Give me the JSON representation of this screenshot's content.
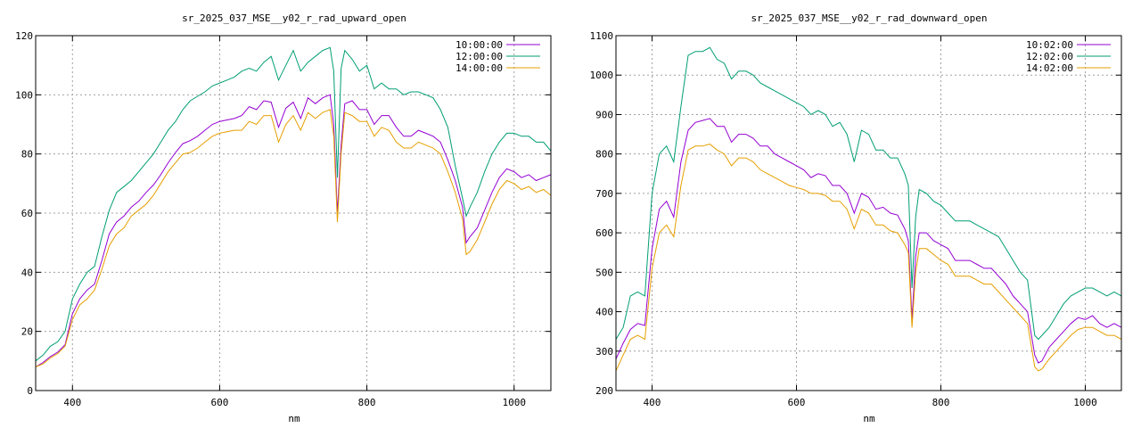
{
  "chart_data": [
    {
      "type": "line",
      "title": "sr_2025_037_MSE__y02_r_rad_upward_open",
      "xlabel": "nm",
      "ylabel": "",
      "xlim": [
        350,
        1050
      ],
      "ylim": [
        0,
        120
      ],
      "xticks": [
        400,
        600,
        800,
        1000
      ],
      "yticks": [
        0,
        20,
        40,
        60,
        80,
        100,
        120
      ],
      "grid": true,
      "legend_position": "top-right",
      "x": [
        350,
        360,
        370,
        380,
        390,
        400,
        410,
        420,
        430,
        440,
        450,
        460,
        470,
        480,
        490,
        500,
        510,
        520,
        530,
        540,
        550,
        560,
        570,
        580,
        590,
        600,
        610,
        620,
        630,
        640,
        650,
        660,
        670,
        680,
        690,
        700,
        710,
        720,
        730,
        740,
        750,
        755,
        760,
        765,
        770,
        780,
        790,
        800,
        810,
        820,
        830,
        840,
        850,
        860,
        870,
        880,
        890,
        900,
        910,
        920,
        930,
        935,
        940,
        950,
        960,
        970,
        980,
        990,
        1000,
        1010,
        1020,
        1030,
        1040,
        1050
      ],
      "series": [
        {
          "name": "10:00:00",
          "color": "#9400d3",
          "values": [
            8,
            9.5,
            11.5,
            13,
            15.5,
            26,
            31,
            34,
            36,
            44,
            53,
            57,
            59,
            62,
            64,
            67,
            69.5,
            73,
            77,
            80.5,
            83.5,
            84.5,
            86,
            88,
            90,
            91,
            91.5,
            92,
            93,
            96,
            95,
            98,
            97.5,
            89,
            95.5,
            97.5,
            92,
            99,
            97,
            99,
            100,
            90,
            60,
            83,
            97,
            98,
            95,
            95,
            90,
            93,
            93,
            89,
            86,
            86,
            88,
            87,
            86,
            84,
            78,
            71,
            62,
            50,
            52,
            55,
            61,
            67,
            72,
            75,
            74,
            72,
            73,
            71,
            72,
            73
          ]
        },
        {
          "name": "12:00:00",
          "color": "#009e73",
          "values": [
            10,
            12,
            15,
            16.5,
            20,
            31,
            36,
            40,
            42,
            52,
            61,
            67,
            69,
            71,
            74,
            77,
            80,
            84,
            88,
            91,
            95,
            98,
            99.5,
            101,
            103,
            104,
            105,
            106,
            108,
            109,
            108,
            111,
            113,
            105,
            110,
            115,
            108,
            111,
            113,
            115,
            116,
            108,
            72,
            109,
            115,
            112,
            108,
            110,
            102,
            104,
            102,
            102,
            100,
            101,
            101,
            100,
            99,
            95,
            89,
            76,
            65,
            59,
            62,
            67,
            74,
            80,
            84,
            87,
            87,
            86,
            86,
            84,
            84,
            81
          ]
        },
        {
          "name": "14:00:00",
          "color": "#e69f00",
          "values": [
            8,
            9,
            11,
            12.5,
            15,
            24,
            29,
            31,
            34,
            41,
            49,
            53,
            55,
            59,
            61,
            63,
            66,
            70,
            74,
            77,
            80,
            80.5,
            82,
            84,
            86,
            87,
            87.5,
            88,
            88,
            91,
            90,
            93,
            93,
            84,
            90,
            93,
            88,
            94,
            92,
            94,
            95,
            86,
            57,
            80,
            94,
            93,
            91,
            91,
            86,
            89,
            88,
            84,
            82,
            82,
            84,
            83,
            82,
            80,
            74,
            67,
            58,
            46,
            47,
            51,
            57,
            63,
            68,
            71,
            70,
            68,
            69,
            67,
            68,
            66
          ]
        }
      ]
    },
    {
      "type": "line",
      "title": "sr_2025_037_MSE__y02_r_rad_downward_open",
      "xlabel": "nm",
      "ylabel": "",
      "xlim": [
        350,
        1050
      ],
      "ylim": [
        200,
        1100
      ],
      "xticks": [
        400,
        600,
        800,
        1000
      ],
      "yticks": [
        200,
        300,
        400,
        500,
        600,
        700,
        800,
        900,
        1000,
        1100
      ],
      "grid": true,
      "legend_position": "top-right",
      "x": [
        350,
        360,
        370,
        380,
        390,
        400,
        410,
        420,
        430,
        440,
        450,
        460,
        470,
        480,
        490,
        500,
        510,
        520,
        530,
        540,
        550,
        560,
        570,
        580,
        590,
        600,
        610,
        620,
        630,
        640,
        650,
        660,
        670,
        680,
        690,
        700,
        710,
        720,
        730,
        740,
        750,
        755,
        760,
        765,
        770,
        780,
        790,
        800,
        810,
        820,
        830,
        840,
        850,
        860,
        870,
        880,
        890,
        900,
        910,
        920,
        930,
        935,
        940,
        950,
        960,
        970,
        980,
        990,
        1000,
        1010,
        1020,
        1030,
        1040,
        1050
      ],
      "series": [
        {
          "name": "10:02:00",
          "color": "#9400d3",
          "values": [
            280,
            320,
            355,
            370,
            365,
            560,
            660,
            680,
            640,
            780,
            860,
            880,
            885,
            890,
            870,
            870,
            830,
            850,
            850,
            840,
            820,
            820,
            800,
            790,
            780,
            770,
            760,
            740,
            750,
            745,
            720,
            720,
            700,
            650,
            700,
            690,
            660,
            665,
            650,
            645,
            610,
            580,
            380,
            540,
            600,
            600,
            580,
            570,
            560,
            530,
            530,
            530,
            520,
            510,
            510,
            490,
            470,
            440,
            420,
            400,
            290,
            270,
            275,
            310,
            330,
            350,
            370,
            385,
            380,
            390,
            370,
            360,
            370,
            360
          ]
        },
        {
          "name": "12:02:00",
          "color": "#009e73",
          "values": [
            330,
            360,
            440,
            450,
            440,
            700,
            800,
            820,
            780,
            920,
            1050,
            1060,
            1060,
            1070,
            1040,
            1030,
            990,
            1010,
            1010,
            1000,
            980,
            970,
            960,
            950,
            940,
            930,
            920,
            900,
            910,
            900,
            870,
            880,
            850,
            780,
            860,
            850,
            810,
            810,
            790,
            790,
            750,
            720,
            460,
            640,
            710,
            700,
            680,
            670,
            650,
            630,
            630,
            630,
            620,
            610,
            600,
            590,
            560,
            530,
            500,
            480,
            340,
            330,
            340,
            360,
            390,
            420,
            440,
            450,
            460,
            460,
            450,
            440,
            450,
            440
          ]
        },
        {
          "name": "14:02:00",
          "color": "#e69f00",
          "values": [
            250,
            290,
            330,
            340,
            330,
            510,
            600,
            620,
            590,
            720,
            810,
            820,
            820,
            825,
            810,
            800,
            770,
            790,
            790,
            780,
            760,
            750,
            740,
            730,
            720,
            715,
            710,
            700,
            700,
            695,
            680,
            680,
            660,
            610,
            660,
            650,
            620,
            620,
            605,
            600,
            570,
            550,
            360,
            500,
            560,
            560,
            545,
            530,
            520,
            490,
            490,
            490,
            480,
            470,
            470,
            450,
            430,
            410,
            390,
            370,
            260,
            250,
            255,
            280,
            300,
            320,
            340,
            355,
            360,
            360,
            350,
            340,
            340,
            330
          ]
        }
      ]
    }
  ]
}
